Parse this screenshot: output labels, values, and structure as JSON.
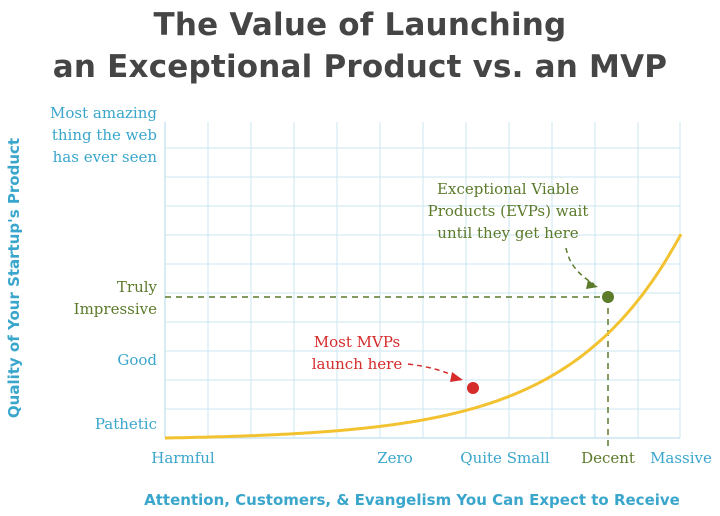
{
  "title_line1": "The Value of Launching",
  "title_line2": "an Exceptional Product vs. an MVP",
  "colors": {
    "title": "#454545",
    "axis_text": "#3aa6cc",
    "grid": "#cbe6f2",
    "curve": "#f2c230",
    "evp": "#5b7a2a",
    "mvp": "#d62b2b"
  },
  "chart_data": {
    "type": "line",
    "title": "The Value of Launching an Exceptional Product vs. an MVP",
    "xlabel": "Attention, Customers, & Evangelism You Can Expect to Receive",
    "ylabel": "Quality of Your Startup's Product",
    "x_ticks": [
      "Harmful",
      "Zero",
      "Quite Small",
      "Decent",
      "Massive"
    ],
    "y_ticks": [
      "Pathetic",
      "Good",
      "Truly Impressive",
      "Most amazing thing the web has ever seen"
    ],
    "y_ticks_display": [
      [
        "Pathetic"
      ],
      [
        "Good"
      ],
      [
        "Truly",
        "Impressive"
      ],
      [
        "Most amazing",
        "thing the web",
        "has ever seen"
      ]
    ],
    "grid": true,
    "curve": "exponential",
    "points": [
      {
        "name": "MVP",
        "x": "Quite Small",
        "y": "Good",
        "annotation": [
          "Most MVPs",
          "launch here"
        ]
      },
      {
        "name": "EVP",
        "x": "Decent",
        "y": "Truly Impressive",
        "annotation": [
          "Exceptional Viable",
          "Products (EVPs) wait",
          "until they get here"
        ]
      }
    ]
  }
}
